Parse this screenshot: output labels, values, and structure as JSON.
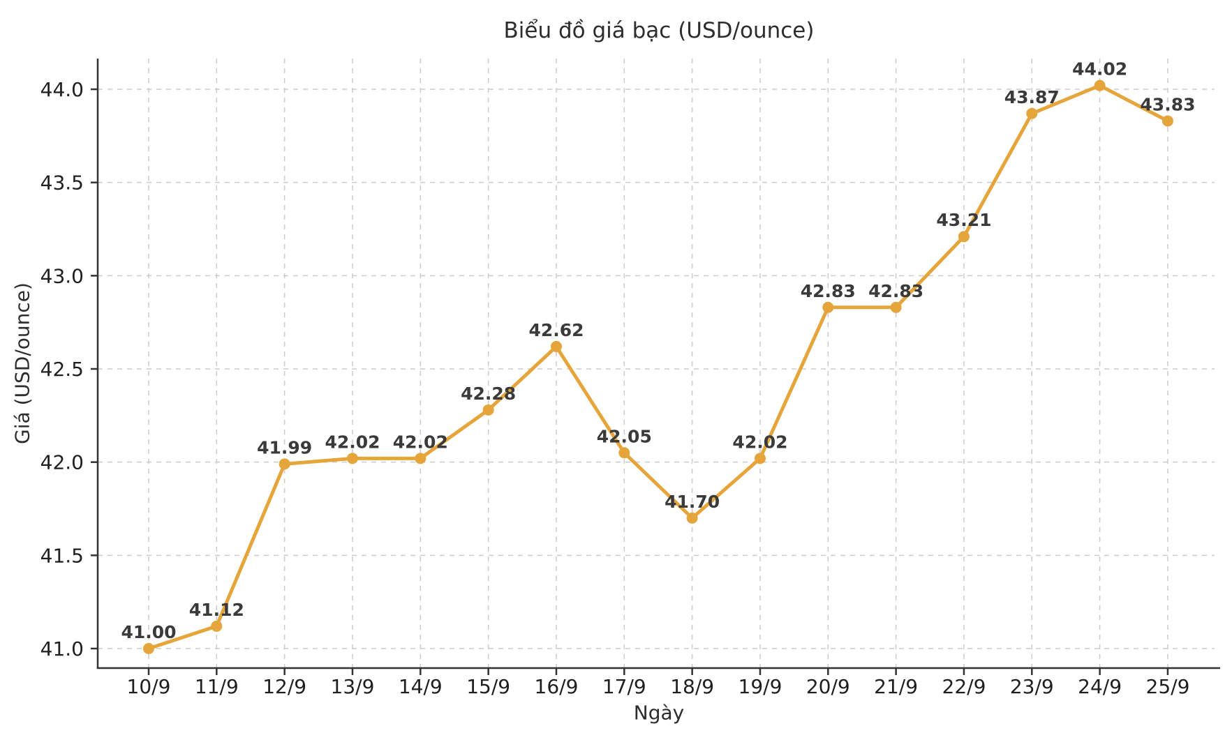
{
  "chart_data": {
    "type": "line",
    "title": "Biểu đồ giá bạc (USD/ounce)",
    "xlabel": "Ngày",
    "ylabel": "Giá (USD/ounce)",
    "categories": [
      "10/9",
      "11/9",
      "12/9",
      "13/9",
      "14/9",
      "15/9",
      "16/9",
      "17/9",
      "18/9",
      "19/9",
      "20/9",
      "21/9",
      "22/9",
      "23/9",
      "24/9",
      "25/9"
    ],
    "series": [
      {
        "name": "Giá bạc",
        "values": [
          41.0,
          41.12,
          41.99,
          42.02,
          42.02,
          42.28,
          42.62,
          42.05,
          41.7,
          42.02,
          42.83,
          42.83,
          43.21,
          43.87,
          44.02,
          43.83
        ],
        "point_labels": [
          "41.00",
          "41.12",
          "41.99",
          "42.02",
          "42.02",
          "42.28",
          "42.62",
          "42.05",
          "41.70",
          "42.02",
          "42.83",
          "42.83",
          "43.21",
          "43.87",
          "44.02",
          "43.83"
        ]
      }
    ],
    "ylim": [
      41.0,
      44.0
    ],
    "ytick_labels": [
      "41.0",
      "41.5",
      "42.0",
      "42.5",
      "43.0",
      "43.5",
      "44.0"
    ],
    "grid": "dashed-major-both",
    "legend": "none",
    "colors": {
      "line": "#E6A53A",
      "marker": "#E6A53A",
      "point_label": "#3a3a3a",
      "tick_label": "#1f1f1f",
      "grid": "#cbcbcb",
      "spine": "#333333",
      "background": "#ffffff"
    }
  }
}
